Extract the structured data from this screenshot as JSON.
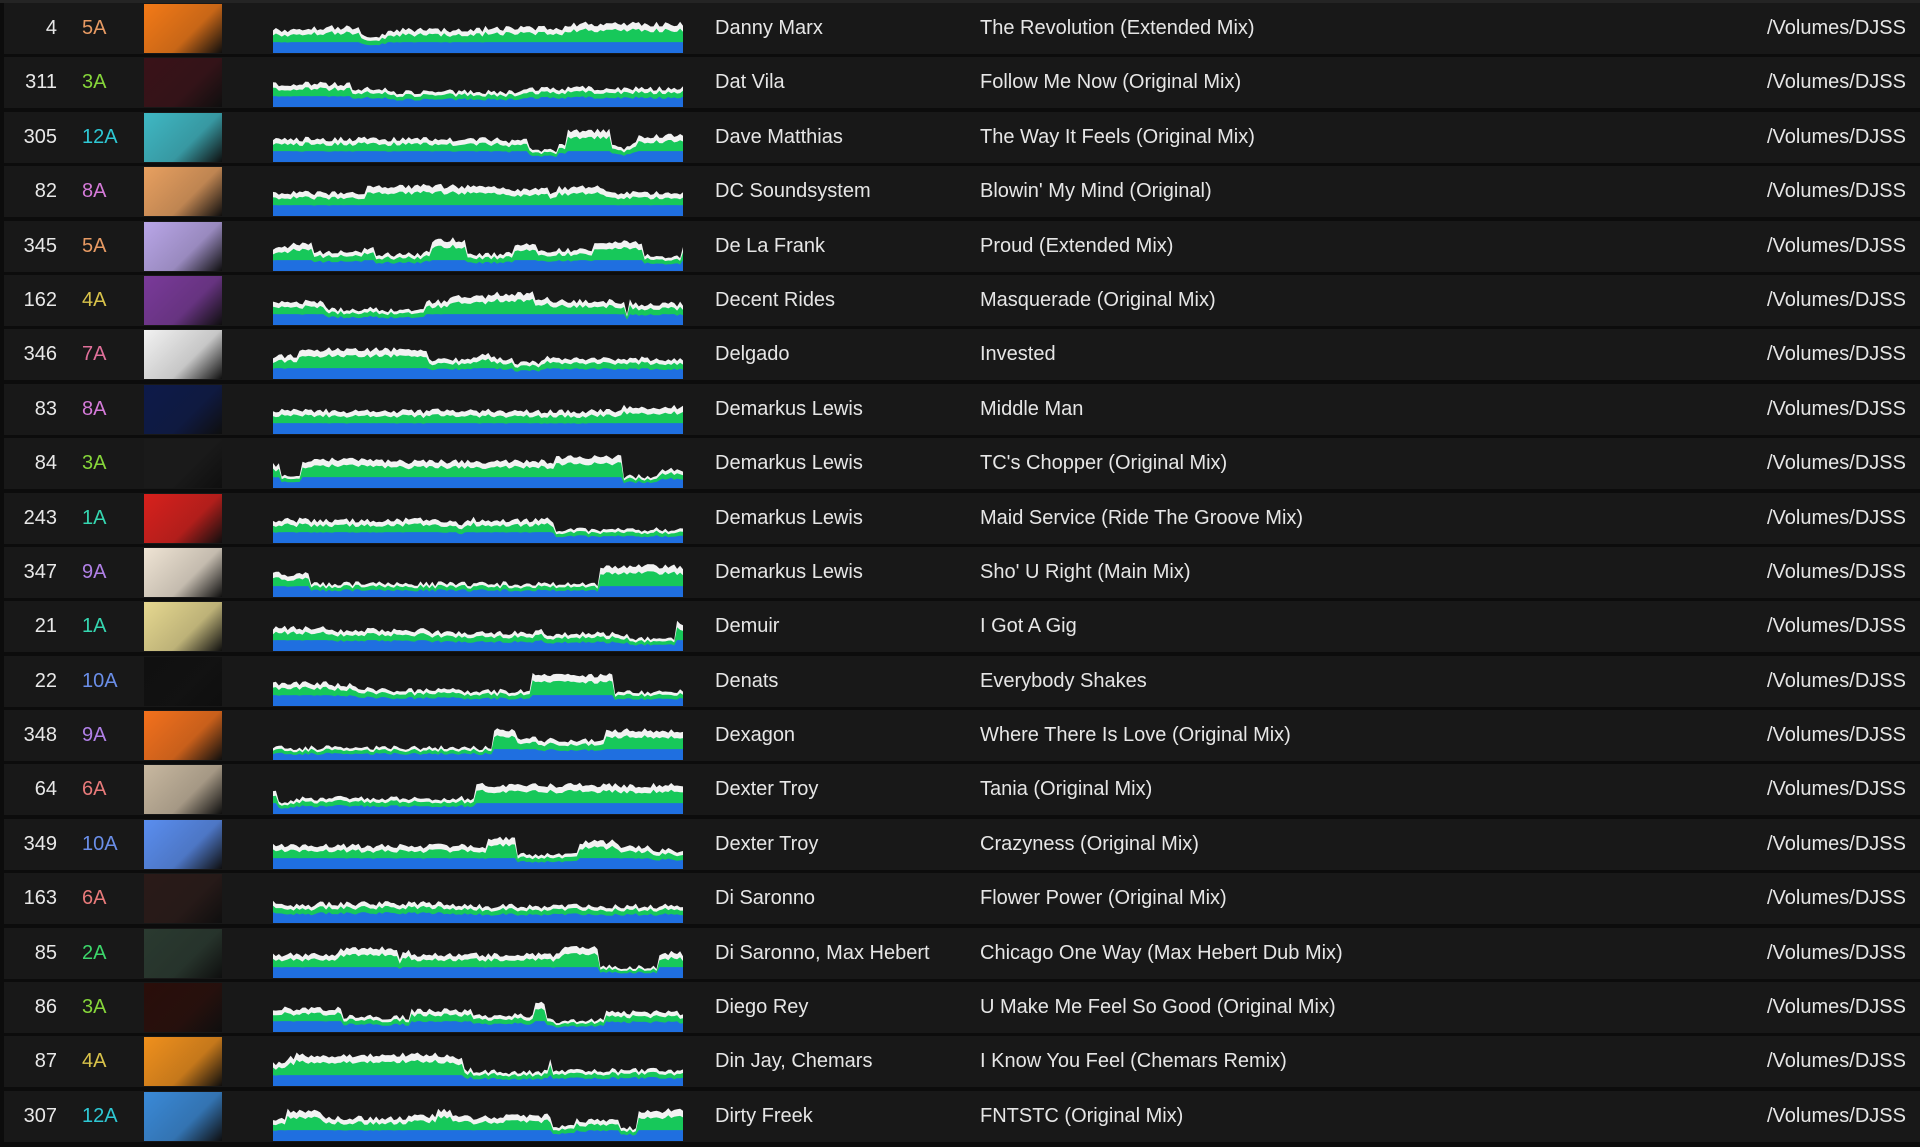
{
  "colors": {
    "wave_low": "#1f6fe0",
    "wave_mid": "#17c85a",
    "wave_high": "#f2f2f2",
    "row_bg": "#181818"
  },
  "tracks": [
    {
      "num": "4",
      "key": "5A",
      "key_color": "#e79a63",
      "art_color": "#f47a17",
      "artist": "Danny Marx",
      "title": "The Revolution (Extended Mix)",
      "path": "/Volumes/DJSS"
    },
    {
      "num": "311",
      "key": "3A",
      "key_color": "#86d63a",
      "art_color": "#3a1218",
      "artist": "Dat Vila",
      "title": "Follow Me Now (Original Mix)",
      "path": "/Volumes/DJSS"
    },
    {
      "num": "305",
      "key": "12A",
      "key_color": "#2ec8d4",
      "art_color": "#3fb8c4",
      "artist": "Dave Matthias",
      "title": "The Way It Feels (Original Mix)",
      "path": "/Volumes/DJSS"
    },
    {
      "num": "82",
      "key": "8A",
      "key_color": "#d47ad8",
      "art_color": "#e8a060",
      "artist": "DC Soundsystem",
      "title": "Blowin' My Mind (Original)",
      "path": "/Volumes/DJSS"
    },
    {
      "num": "345",
      "key": "5A",
      "key_color": "#e79a63",
      "art_color": "#b9a6e8",
      "artist": "De La Frank",
      "title": "Proud (Extended Mix)",
      "path": "/Volumes/DJSS"
    },
    {
      "num": "162",
      "key": "4A",
      "key_color": "#d8c24a",
      "art_color": "#7a3a9a",
      "artist": "Decent Rides",
      "title": "Masquerade (Original Mix)",
      "path": "/Volumes/DJSS"
    },
    {
      "num": "346",
      "key": "7A",
      "key_color": "#e0709a",
      "art_color": "#f2f2f2",
      "artist": "Delgado",
      "title": "Invested",
      "path": "/Volumes/DJSS"
    },
    {
      "num": "83",
      "key": "8A",
      "key_color": "#d47ad8",
      "art_color": "#0d1a4a",
      "artist": "Demarkus Lewis",
      "title": "Middle Man",
      "path": "/Volumes/DJSS"
    },
    {
      "num": "84",
      "key": "3A",
      "key_color": "#86d63a",
      "art_color": "#1a1a1a",
      "artist": "Demarkus Lewis",
      "title": "TC's Chopper (Original Mix)",
      "path": "/Volumes/DJSS"
    },
    {
      "num": "243",
      "key": "1A",
      "key_color": "#35d6b0",
      "art_color": "#d8201c",
      "artist": "Demarkus Lewis",
      "title": "Maid Service (Ride The Groove Mix)",
      "path": "/Volumes/DJSS"
    },
    {
      "num": "347",
      "key": "9A",
      "key_color": "#b080e6",
      "art_color": "#efe4d4",
      "artist": "Demarkus Lewis",
      "title": "Sho' U Right (Main Mix)",
      "path": "/Volumes/DJSS"
    },
    {
      "num": "21",
      "key": "1A",
      "key_color": "#35d6b0",
      "art_color": "#e6d890",
      "artist": "Demuir",
      "title": "I Got A Gig",
      "path": "/Volumes/DJSS"
    },
    {
      "num": "22",
      "key": "10A",
      "key_color": "#6a8ee8",
      "art_color": "#101010",
      "artist": "Denats",
      "title": "Everybody Shakes",
      "path": "/Volumes/DJSS"
    },
    {
      "num": "348",
      "key": "9A",
      "key_color": "#b080e6",
      "art_color": "#f4711c",
      "artist": "Dexagon",
      "title": "Where There Is Love (Original Mix)",
      "path": "/Volumes/DJSS"
    },
    {
      "num": "64",
      "key": "6A",
      "key_color": "#e87a7a",
      "art_color": "#c8b8a0",
      "artist": "Dexter Troy",
      "title": "Tania (Original Mix)",
      "path": "/Volumes/DJSS"
    },
    {
      "num": "349",
      "key": "10A",
      "key_color": "#6a8ee8",
      "art_color": "#5a8ef0",
      "artist": "Dexter Troy",
      "title": "Crazyness (Original Mix)",
      "path": "/Volumes/DJSS"
    },
    {
      "num": "163",
      "key": "6A",
      "key_color": "#e87a7a",
      "art_color": "#2a1a18",
      "artist": "Di Saronno",
      "title": "Flower Power (Original Mix)",
      "path": "/Volumes/DJSS"
    },
    {
      "num": "85",
      "key": "2A",
      "key_color": "#3cd66a",
      "art_color": "#2a3a30",
      "artist": "Di Saronno, Max Hebert",
      "title": "Chicago One Way (Max Hebert Dub Mix)",
      "path": "/Volumes/DJSS"
    },
    {
      "num": "86",
      "key": "3A",
      "key_color": "#86d63a",
      "art_color": "#2a0e0a",
      "artist": "Diego Rey",
      "title": "U Make Me Feel So Good (Original Mix)",
      "path": "/Volumes/DJSS"
    },
    {
      "num": "87",
      "key": "4A",
      "key_color": "#d8c24a",
      "art_color": "#f0901c",
      "artist": "Din Jay, Chemars",
      "title": "I Know You Feel (Chemars Remix)",
      "path": "/Volumes/DJSS"
    },
    {
      "num": "307",
      "key": "12A",
      "key_color": "#2ec8d4",
      "art_color": "#3a8ad8",
      "artist": "Dirty Freek",
      "title": "FNTSTC (Original Mix)",
      "path": "/Volumes/DJSS"
    }
  ]
}
